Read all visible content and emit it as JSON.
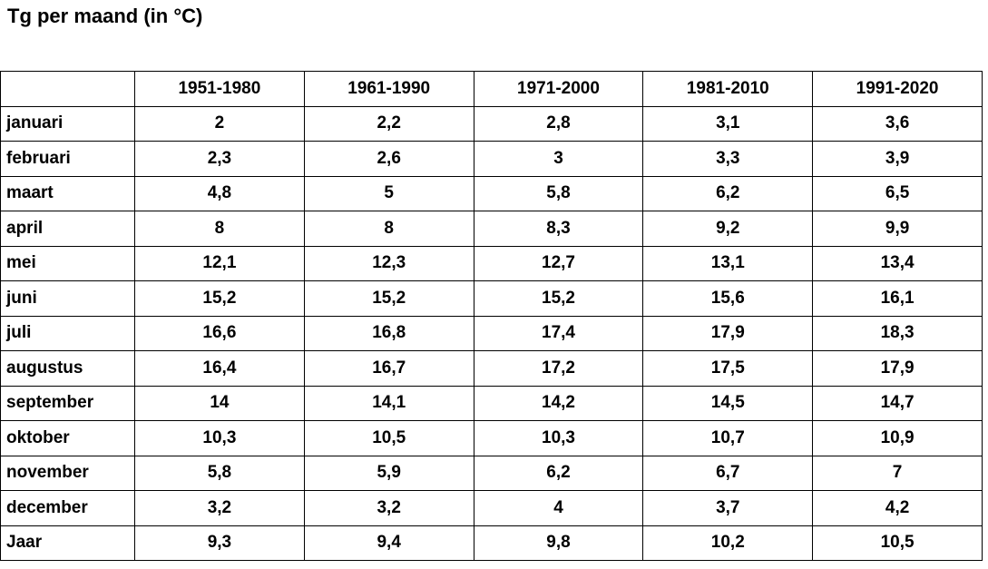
{
  "title": "Tg per maand (in °C)",
  "table": {
    "columns": [
      "",
      "1951-1980",
      "1961-1990",
      "1971-2000",
      "1981-2010",
      "1991-2020"
    ],
    "rows": [
      {
        "label": "januari",
        "values": [
          "2",
          "2,2",
          "2,8",
          "3,1",
          "3,6"
        ]
      },
      {
        "label": "februari",
        "values": [
          "2,3",
          "2,6",
          "3",
          "3,3",
          "3,9"
        ]
      },
      {
        "label": "maart",
        "values": [
          "4,8",
          "5",
          "5,8",
          "6,2",
          "6,5"
        ]
      },
      {
        "label": "april",
        "values": [
          "8",
          "8",
          "8,3",
          "9,2",
          "9,9"
        ]
      },
      {
        "label": "mei",
        "values": [
          "12,1",
          "12,3",
          "12,7",
          "13,1",
          "13,4"
        ]
      },
      {
        "label": "juni",
        "values": [
          "15,2",
          "15,2",
          "15,2",
          "15,6",
          "16,1"
        ]
      },
      {
        "label": "juli",
        "values": [
          "16,6",
          "16,8",
          "17,4",
          "17,9",
          "18,3"
        ]
      },
      {
        "label": "augustus",
        "values": [
          "16,4",
          "16,7",
          "17,2",
          "17,5",
          "17,9"
        ]
      },
      {
        "label": "september",
        "values": [
          "14",
          "14,1",
          "14,2",
          "14,5",
          "14,7"
        ]
      },
      {
        "label": "oktober",
        "values": [
          "10,3",
          "10,5",
          "10,3",
          "10,7",
          "10,9"
        ]
      },
      {
        "label": "november",
        "values": [
          "5,8",
          "5,9",
          "6,2",
          "6,7",
          "7"
        ]
      },
      {
        "label": "december",
        "values": [
          "3,2",
          "3,2",
          "4",
          "3,7",
          "4,2"
        ]
      },
      {
        "label": "Jaar",
        "values": [
          "9,3",
          "9,4",
          "9,8",
          "10,2",
          "10,5"
        ]
      }
    ]
  },
  "chart_data": {
    "type": "table",
    "title": "Tg per maand (in °C)",
    "categories": [
      "januari",
      "februari",
      "maart",
      "april",
      "mei",
      "juni",
      "juli",
      "augustus",
      "september",
      "oktober",
      "november",
      "december",
      "Jaar"
    ],
    "series": [
      {
        "name": "1951-1980",
        "values": [
          2,
          2.3,
          4.8,
          8,
          12.1,
          15.2,
          16.6,
          16.4,
          14,
          10.3,
          5.8,
          3.2,
          9.3
        ]
      },
      {
        "name": "1961-1990",
        "values": [
          2.2,
          2.6,
          5,
          8,
          12.3,
          15.2,
          16.8,
          16.7,
          14.1,
          10.5,
          5.9,
          3.2,
          9.4
        ]
      },
      {
        "name": "1971-2000",
        "values": [
          2.8,
          3,
          5.8,
          8.3,
          12.7,
          15.2,
          17.4,
          17.2,
          14.2,
          10.3,
          6.2,
          4,
          9.8
        ]
      },
      {
        "name": "1981-2010",
        "values": [
          3.1,
          3.3,
          6.2,
          9.2,
          13.1,
          15.6,
          17.9,
          17.5,
          14.5,
          10.7,
          6.7,
          3.7,
          10.2
        ]
      },
      {
        "name": "1991-2020",
        "values": [
          3.6,
          3.9,
          6.5,
          9.9,
          13.4,
          16.1,
          18.3,
          17.9,
          14.7,
          10.9,
          7,
          4.2,
          10.5
        ]
      }
    ],
    "value_unit": "°C",
    "decimal_separator": ","
  }
}
